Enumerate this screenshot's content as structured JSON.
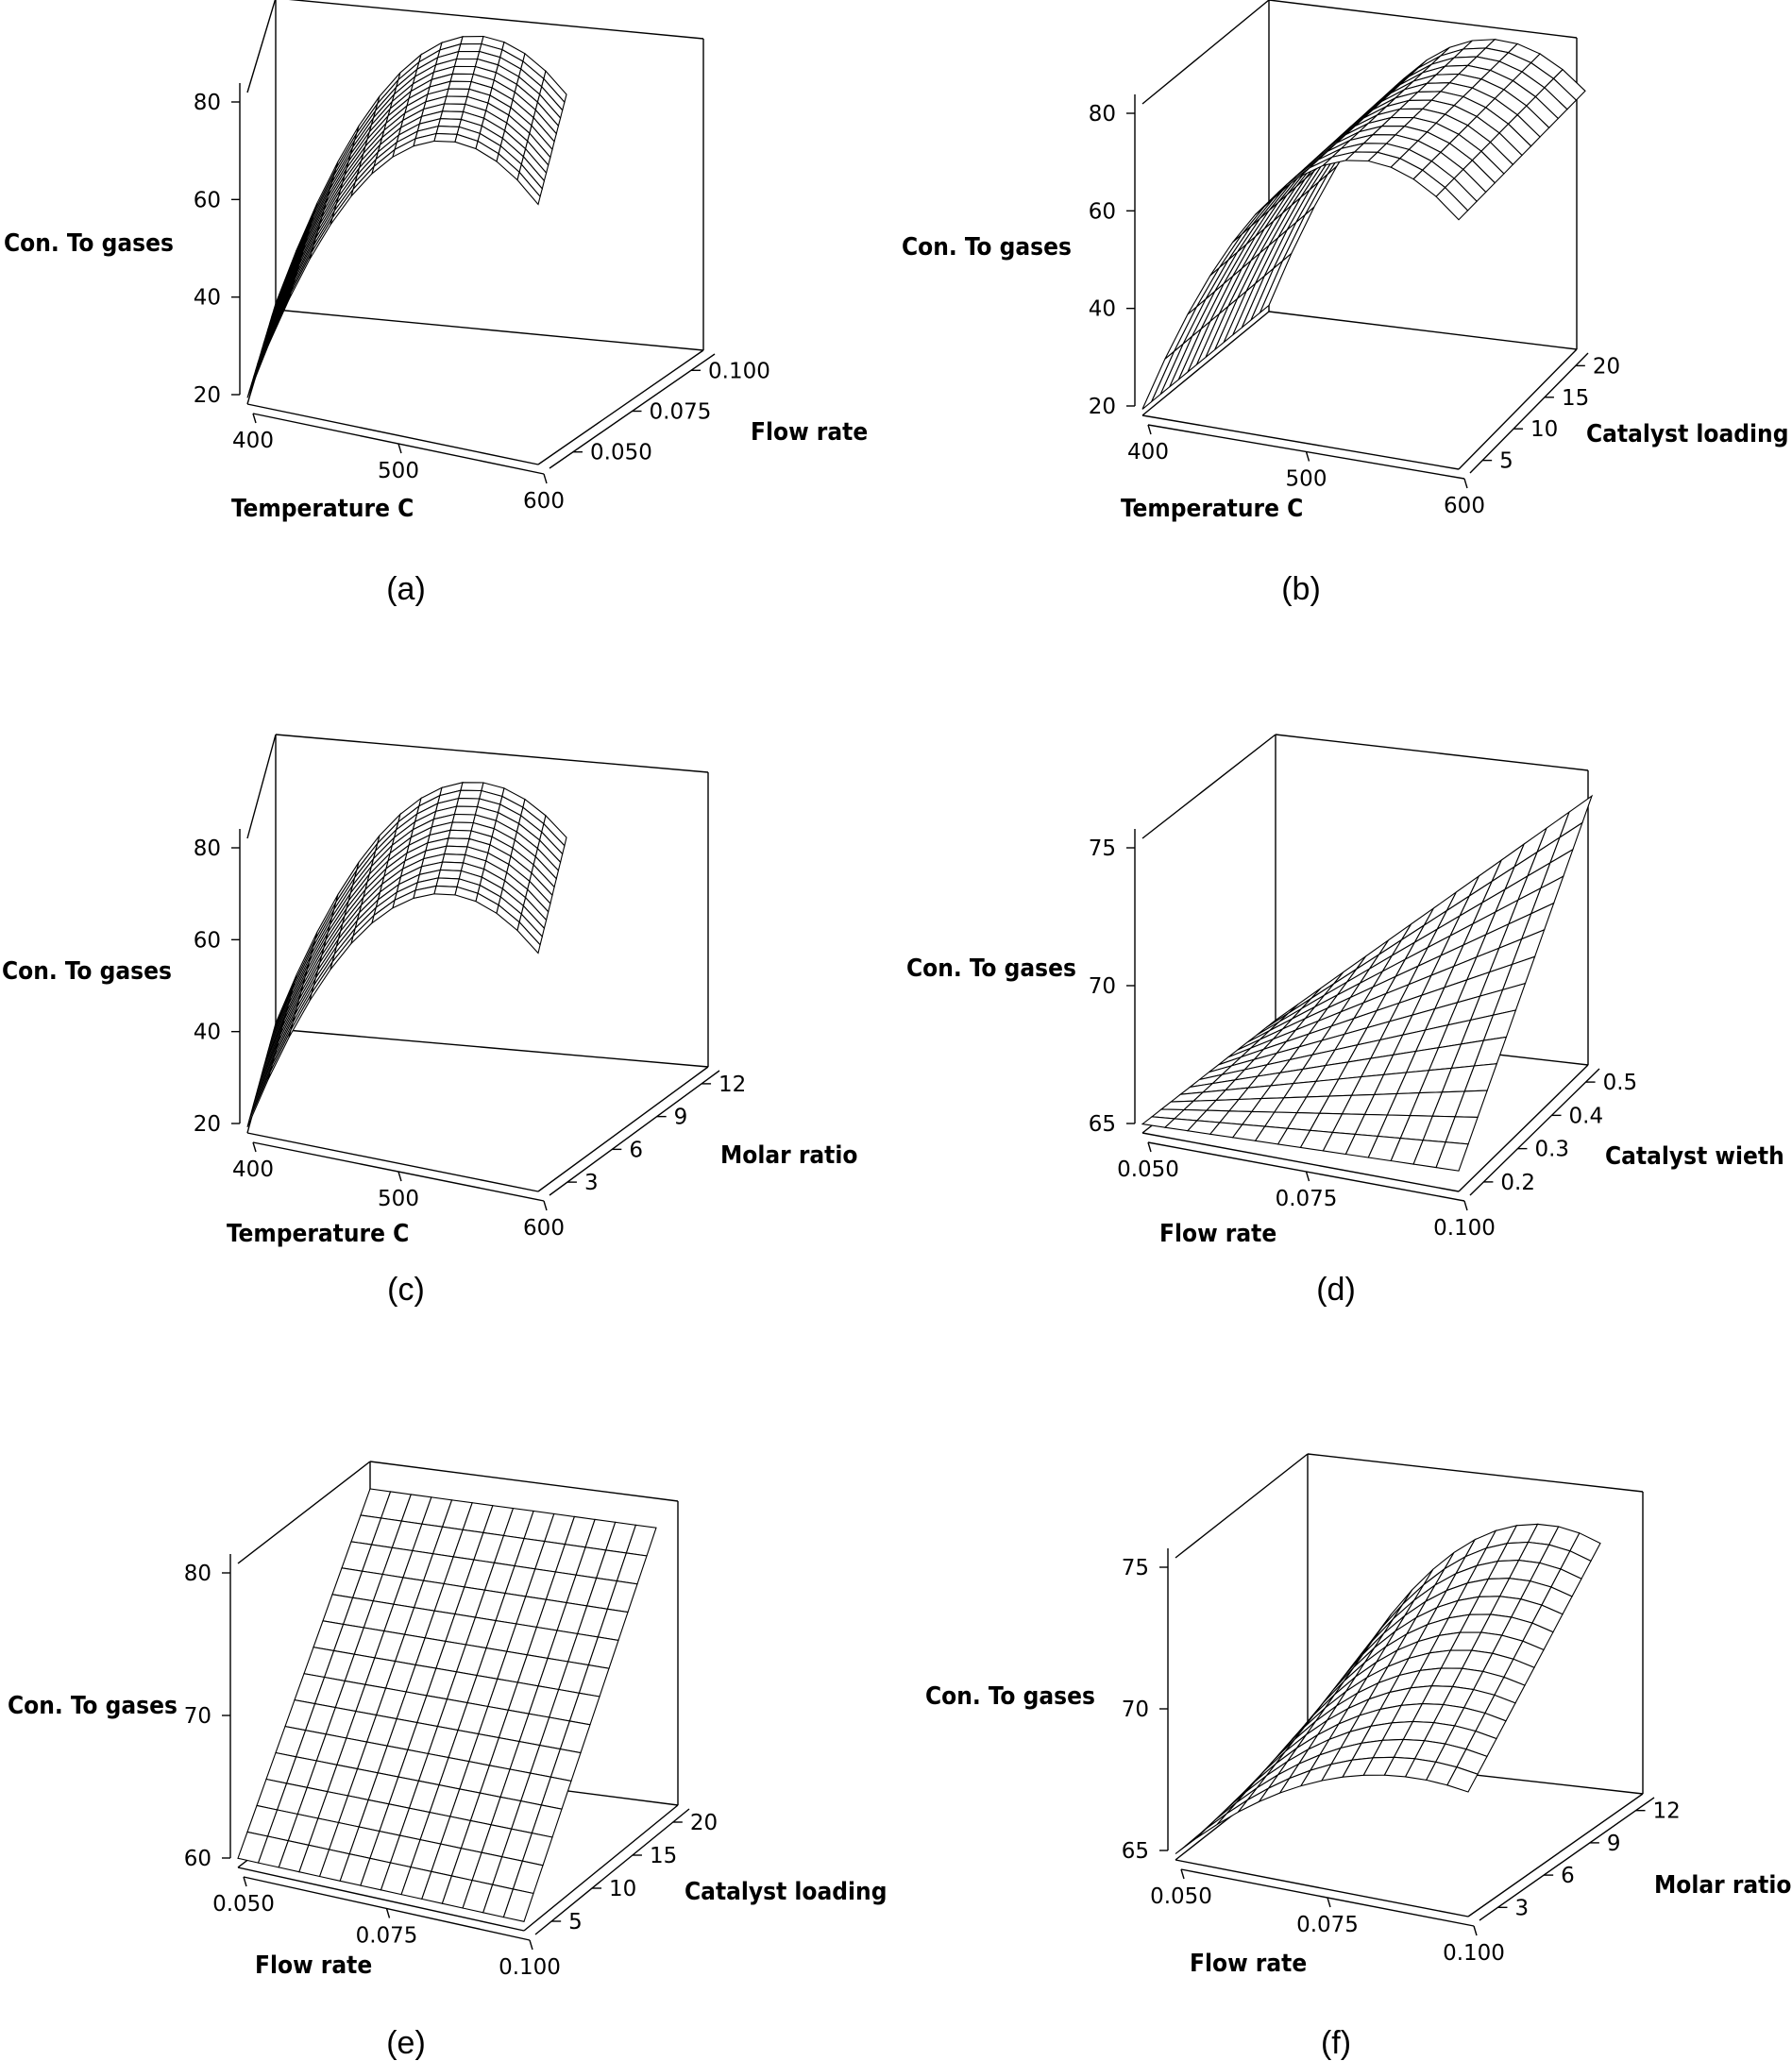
{
  "chart_data": [
    {
      "type": "surface",
      "caption": "(a)",
      "zlabel": "Con. To gases",
      "xlabel": "Temperature C",
      "ylabel": "Flow rate",
      "zticks": [
        "20",
        "40",
        "60",
        "80"
      ],
      "xticks": [
        "400",
        "500",
        "600"
      ],
      "yticks": [
        "0.050",
        "0.075",
        "0.100"
      ],
      "zlim": [
        20,
        80
      ],
      "x": [
        "400",
        "600"
      ],
      "y": [
        "0.050",
        "0.100"
      ]
    },
    {
      "type": "surface",
      "caption": "(b)",
      "zlabel": "Con. To gases",
      "xlabel": "Temperature C",
      "ylabel": "Catalyst loading",
      "zticks": [
        "20",
        "40",
        "60",
        "80"
      ],
      "xticks": [
        "400",
        "500",
        "600"
      ],
      "yticks": [
        "5",
        "10",
        "15",
        "20"
      ],
      "zlim": [
        20,
        80
      ],
      "x": [
        "400",
        "600"
      ],
      "y": [
        "5",
        "20"
      ]
    },
    {
      "type": "surface",
      "caption": "(c)",
      "zlabel": "Con. To gases",
      "xlabel": "Temperature C",
      "ylabel": "Molar ratio",
      "zticks": [
        "20",
        "40",
        "60",
        "80"
      ],
      "xticks": [
        "400",
        "500",
        "600"
      ],
      "yticks": [
        "3",
        "6",
        "9",
        "12"
      ],
      "zlim": [
        20,
        80
      ],
      "x": [
        "400",
        "600"
      ],
      "y": [
        "3",
        "12"
      ]
    },
    {
      "type": "surface",
      "caption": "(d)",
      "zlabel": "Con. To gases",
      "xlabel": "Flow rate",
      "ylabel": "Catalyst wieth",
      "zticks": [
        "65",
        "70",
        "75"
      ],
      "xticks": [
        "0.050",
        "0.075",
        "0.100"
      ],
      "yticks": [
        "0.2",
        "0.3",
        "0.4",
        "0.5"
      ],
      "zlim": [
        65,
        75
      ],
      "x": [
        "0.050",
        "0.100"
      ],
      "y": [
        "0.2",
        "0.5"
      ]
    },
    {
      "type": "surface",
      "caption": "(e)",
      "zlabel": "Con. To gases",
      "xlabel": "Flow rate",
      "ylabel": "Catalyst loading",
      "zticks": [
        "60",
        "70",
        "80"
      ],
      "xticks": [
        "0.050",
        "0.075",
        "0.100"
      ],
      "yticks": [
        "5",
        "10",
        "15",
        "20"
      ],
      "zlim": [
        60,
        80
      ],
      "x": [
        "0.050",
        "0.100"
      ],
      "y": [
        "5",
        "20"
      ]
    },
    {
      "type": "surface",
      "caption": "(f)",
      "zlabel": "Con. To gases",
      "xlabel": "Flow rate",
      "ylabel": "Molar ratio",
      "zticks": [
        "65",
        "70",
        "75"
      ],
      "xticks": [
        "0.050",
        "0.075",
        "0.100"
      ],
      "yticks": [
        "3",
        "6",
        "9",
        "12"
      ],
      "zlim": [
        65,
        75
      ],
      "x": [
        "0.050",
        "0.100"
      ],
      "y": [
        "3",
        "12"
      ]
    }
  ]
}
